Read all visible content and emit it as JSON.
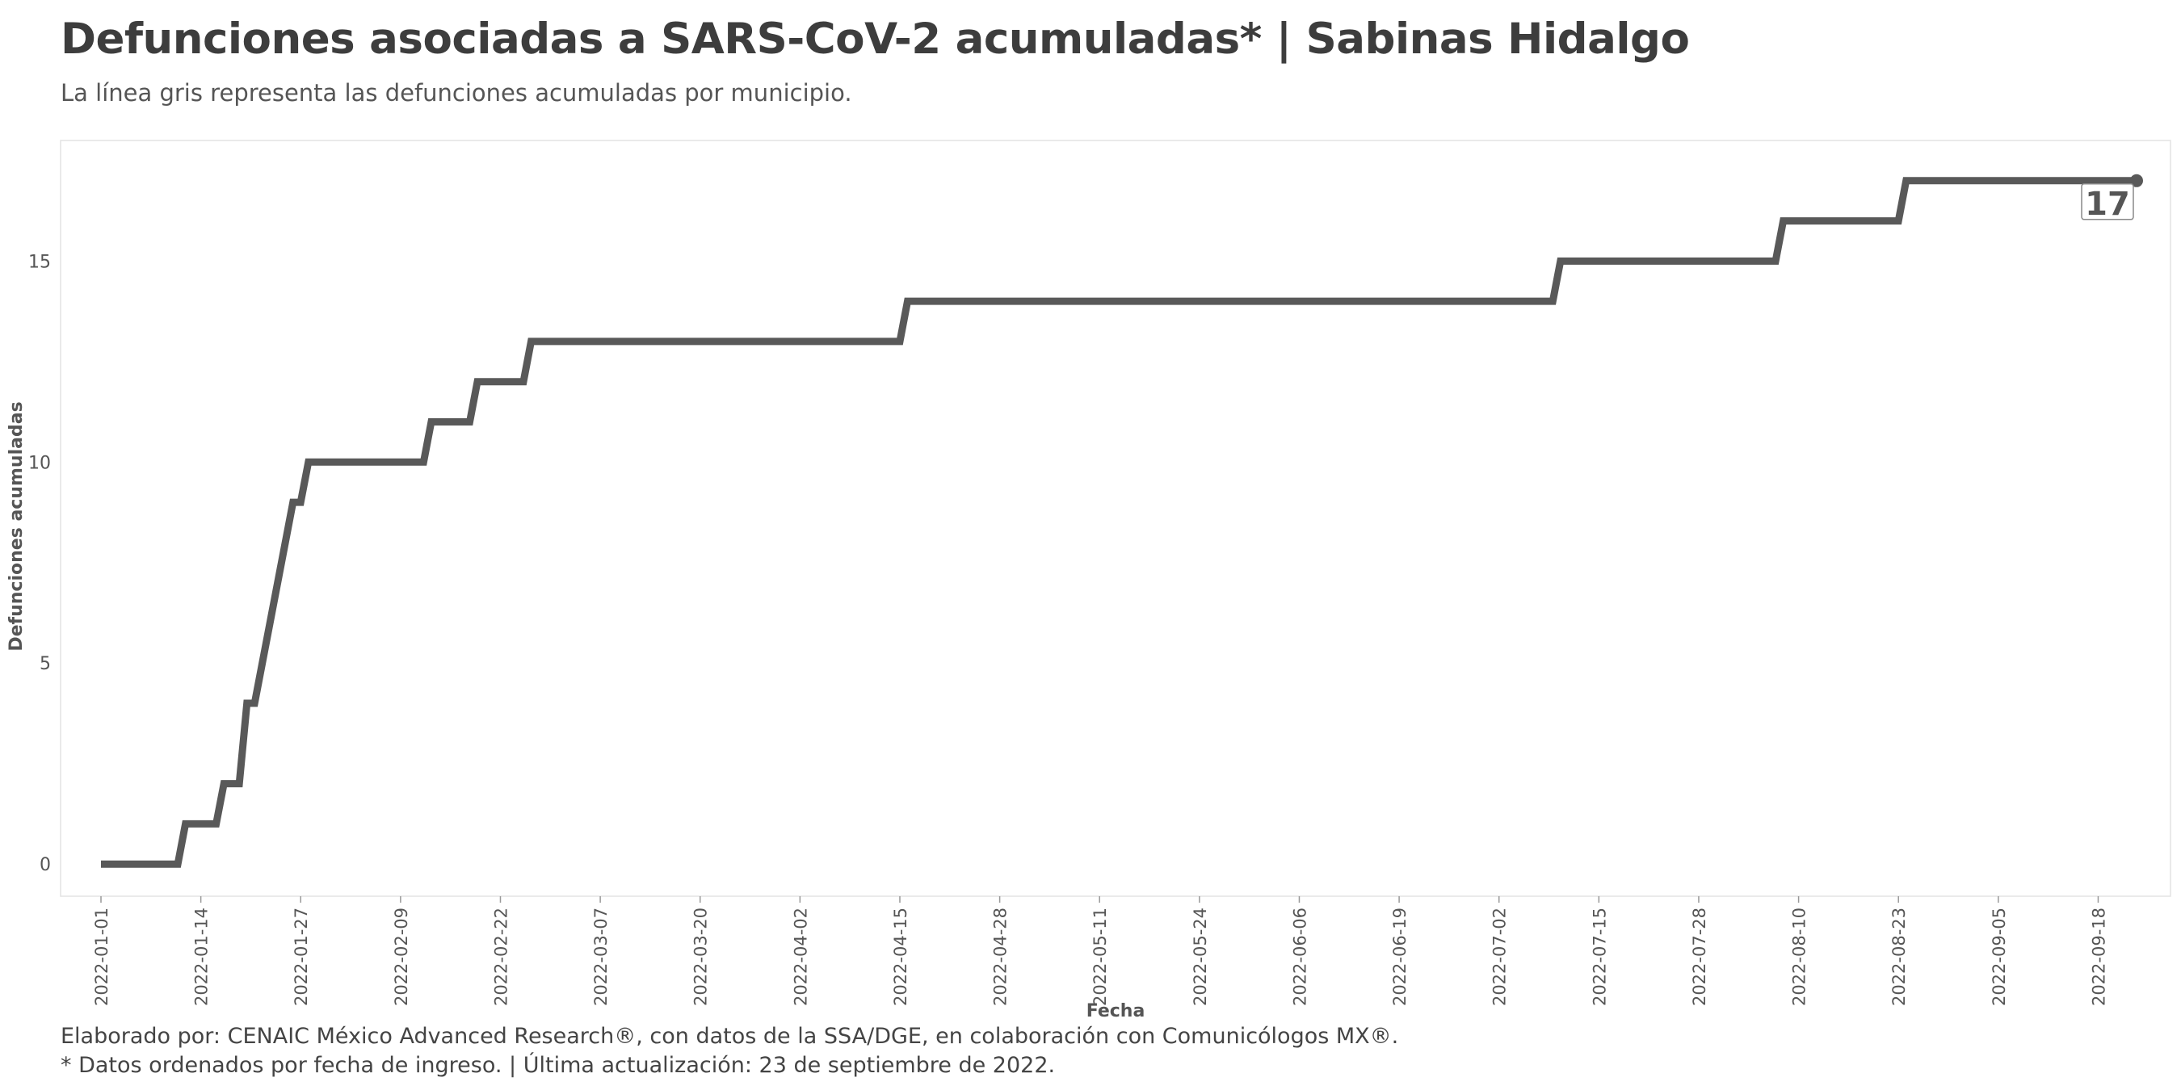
{
  "header": {
    "title": "Defunciones asociadas a SARS-CoV-2 acumuladas* | Sabinas Hidalgo",
    "subtitle": "La línea gris representa las defunciones acumuladas por municipio."
  },
  "footer": {
    "caption_line1": "Elaborado por: CENAIC México Advanced Research®, con datos de la SSA/DGE, en colaboración con Comunicólogos MX®.",
    "caption_line2": "* Datos ordenados por fecha de ingreso. | Última actualización: 23 de septiembre de 2022."
  },
  "colors": {
    "line": "#595959",
    "text": "#3d3d3d",
    "axis": "#555555",
    "panel_border": "#e3e3e3"
  },
  "chart_data": {
    "type": "line",
    "line_shape": "step",
    "xlabel": "Fecha",
    "ylabel": "Defunciones acumuladas",
    "xlim": [
      "2022-01-01",
      "2022-09-23"
    ],
    "ylim": [
      -0.8,
      18
    ],
    "y_ticks": [
      0,
      5,
      10,
      15
    ],
    "x_ticks": [
      "2022-01-01",
      "2022-01-14",
      "2022-01-27",
      "2022-02-09",
      "2022-02-22",
      "2022-03-07",
      "2022-03-20",
      "2022-04-02",
      "2022-04-15",
      "2022-04-28",
      "2022-05-11",
      "2022-05-24",
      "2022-06-06",
      "2022-06-19",
      "2022-07-02",
      "2022-07-15",
      "2022-07-28",
      "2022-08-10",
      "2022-08-23",
      "2022-09-05",
      "2022-09-18"
    ],
    "grid": false,
    "legend": "none",
    "series": [
      {
        "points": [
          [
            "2022-01-01",
            0
          ],
          [
            "2022-01-11",
            0
          ],
          [
            "2022-01-12",
            1
          ],
          [
            "2022-01-16",
            1
          ],
          [
            "2022-01-17",
            2
          ],
          [
            "2022-01-19",
            2
          ],
          [
            "2022-01-20",
            4
          ],
          [
            "2022-01-21",
            4
          ],
          [
            "2022-01-26",
            9
          ],
          [
            "2022-01-27",
            9
          ],
          [
            "2022-01-28",
            10
          ],
          [
            "2022-02-12",
            10
          ],
          [
            "2022-02-13",
            11
          ],
          [
            "2022-02-18",
            11
          ],
          [
            "2022-02-19",
            12
          ],
          [
            "2022-02-25",
            12
          ],
          [
            "2022-02-26",
            13
          ],
          [
            "2022-04-15",
            13
          ],
          [
            "2022-04-16",
            14
          ],
          [
            "2022-07-09",
            14
          ],
          [
            "2022-07-10",
            15
          ],
          [
            "2022-08-07",
            15
          ],
          [
            "2022-08-08",
            16
          ],
          [
            "2022-08-23",
            16
          ],
          [
            "2022-08-24",
            17
          ],
          [
            "2022-09-23",
            17
          ]
        ]
      }
    ],
    "end_label": "17"
  }
}
